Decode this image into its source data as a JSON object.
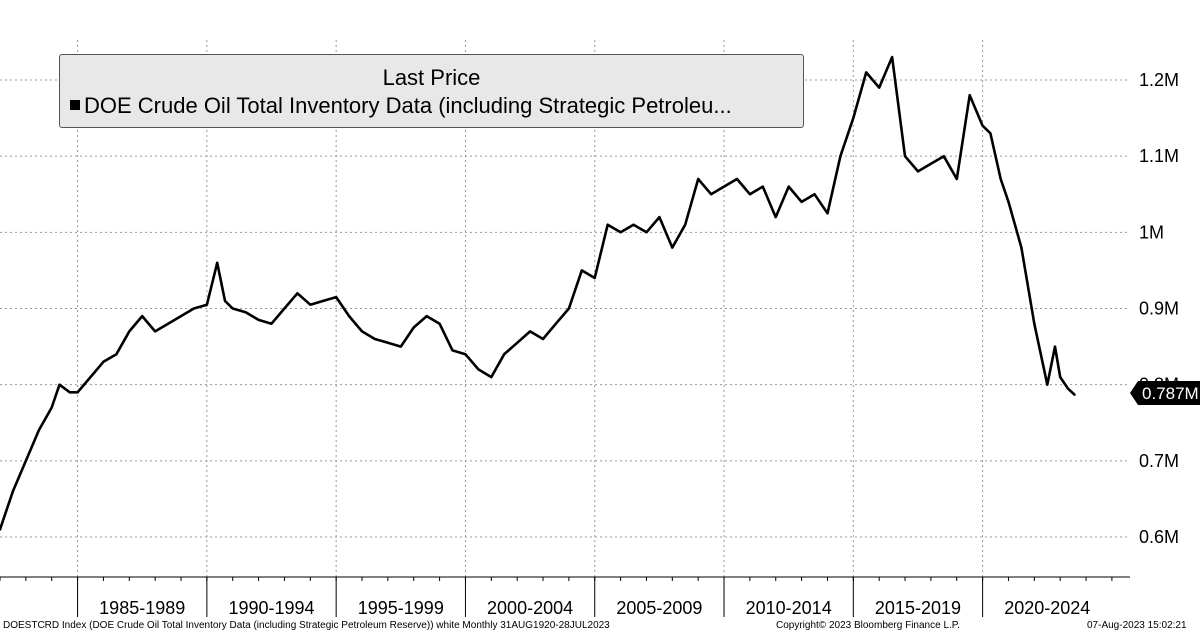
{
  "chart_data": {
    "type": "line",
    "legend": {
      "title": "Last Price",
      "entry": "DOE Crude Oil Total Inventory Data (including Strategic Petroleu..."
    },
    "series": [
      {
        "name": "DOE Crude Oil Total Inventory Data (including Strategic Petroleum Reserve)",
        "x": [
          1982.0,
          1982.5,
          1983.0,
          1983.5,
          1984.0,
          1984.3,
          1984.7,
          1985.0,
          1985.5,
          1986.0,
          1986.5,
          1987.0,
          1987.5,
          1988.0,
          1988.5,
          1989.0,
          1989.5,
          1990.0,
          1990.4,
          1990.7,
          1991.0,
          1991.5,
          1992.0,
          1992.5,
          1993.0,
          1993.5,
          1994.0,
          1994.5,
          1995.0,
          1995.5,
          1996.0,
          1996.5,
          1997.0,
          1997.5,
          1998.0,
          1998.5,
          1999.0,
          1999.5,
          2000.0,
          2000.5,
          2001.0,
          2001.5,
          2002.0,
          2002.5,
          2003.0,
          2003.5,
          2004.0,
          2004.5,
          2005.0,
          2005.5,
          2006.0,
          2006.5,
          2007.0,
          2007.5,
          2008.0,
          2008.5,
          2009.0,
          2009.5,
          2010.0,
          2010.5,
          2011.0,
          2011.5,
          2012.0,
          2012.5,
          2013.0,
          2013.5,
          2014.0,
          2014.5,
          2015.0,
          2015.5,
          2016.0,
          2016.5,
          2017.0,
          2017.5,
          2018.0,
          2018.5,
          2019.0,
          2019.5,
          2020.0,
          2020.3,
          2020.7,
          2021.0,
          2021.5,
          2022.0,
          2022.5,
          2022.8,
          2023.0,
          2023.3,
          2023.55
        ],
        "values": [
          0.61,
          0.66,
          0.7,
          0.74,
          0.77,
          0.8,
          0.79,
          0.79,
          0.81,
          0.83,
          0.84,
          0.87,
          0.89,
          0.87,
          0.88,
          0.89,
          0.9,
          0.905,
          0.96,
          0.91,
          0.9,
          0.895,
          0.885,
          0.88,
          0.9,
          0.92,
          0.905,
          0.91,
          0.915,
          0.89,
          0.87,
          0.86,
          0.855,
          0.85,
          0.875,
          0.89,
          0.88,
          0.845,
          0.84,
          0.82,
          0.81,
          0.84,
          0.855,
          0.87,
          0.86,
          0.88,
          0.9,
          0.95,
          0.94,
          1.01,
          1.0,
          1.01,
          1.0,
          1.02,
          0.98,
          1.01,
          1.07,
          1.05,
          1.06,
          1.07,
          1.05,
          1.06,
          1.02,
          1.06,
          1.04,
          1.05,
          1.025,
          1.1,
          1.15,
          1.21,
          1.19,
          1.23,
          1.1,
          1.08,
          1.09,
          1.1,
          1.07,
          1.18,
          1.14,
          1.13,
          1.07,
          1.04,
          0.98,
          0.88,
          0.8,
          0.85,
          0.81,
          0.795,
          0.787
        ]
      }
    ],
    "x_categories": [
      "1985-1989",
      "1990-1994",
      "1995-1999",
      "2000-2004",
      "2005-2009",
      "2010-2014",
      "2015-2019",
      "2020-2024"
    ],
    "x_boundaries": [
      1985,
      1990,
      1995,
      2000,
      2005,
      2010,
      2015,
      2020,
      2025
    ],
    "xlim": [
      1982.0,
      2025.7
    ],
    "yticks": [
      0.6,
      0.7,
      0.8,
      0.9,
      1.0,
      1.1,
      1.2
    ],
    "ytick_labels": [
      "0.6M",
      "0.7M",
      "0.8M",
      "0.9M",
      "1M",
      "1.1M",
      "1.2M"
    ],
    "ylim": [
      0.5475,
      1.2525
    ],
    "last_value_label": "0.787M",
    "grid": true
  },
  "footer": {
    "left": "DOESTCRD Index (DOE Crude Oil Total Inventory Data (including Strategic Petroleum Reserve)) white  Monthly 31AUG1920-28JUL2023",
    "center": "Copyright© 2023 Bloomberg Finance L.P.",
    "right": "07-Aug-2023 15:02:21"
  },
  "colors": {
    "line": "#000000",
    "grid": "#999999",
    "legend_bg": "#e8e8e8"
  }
}
